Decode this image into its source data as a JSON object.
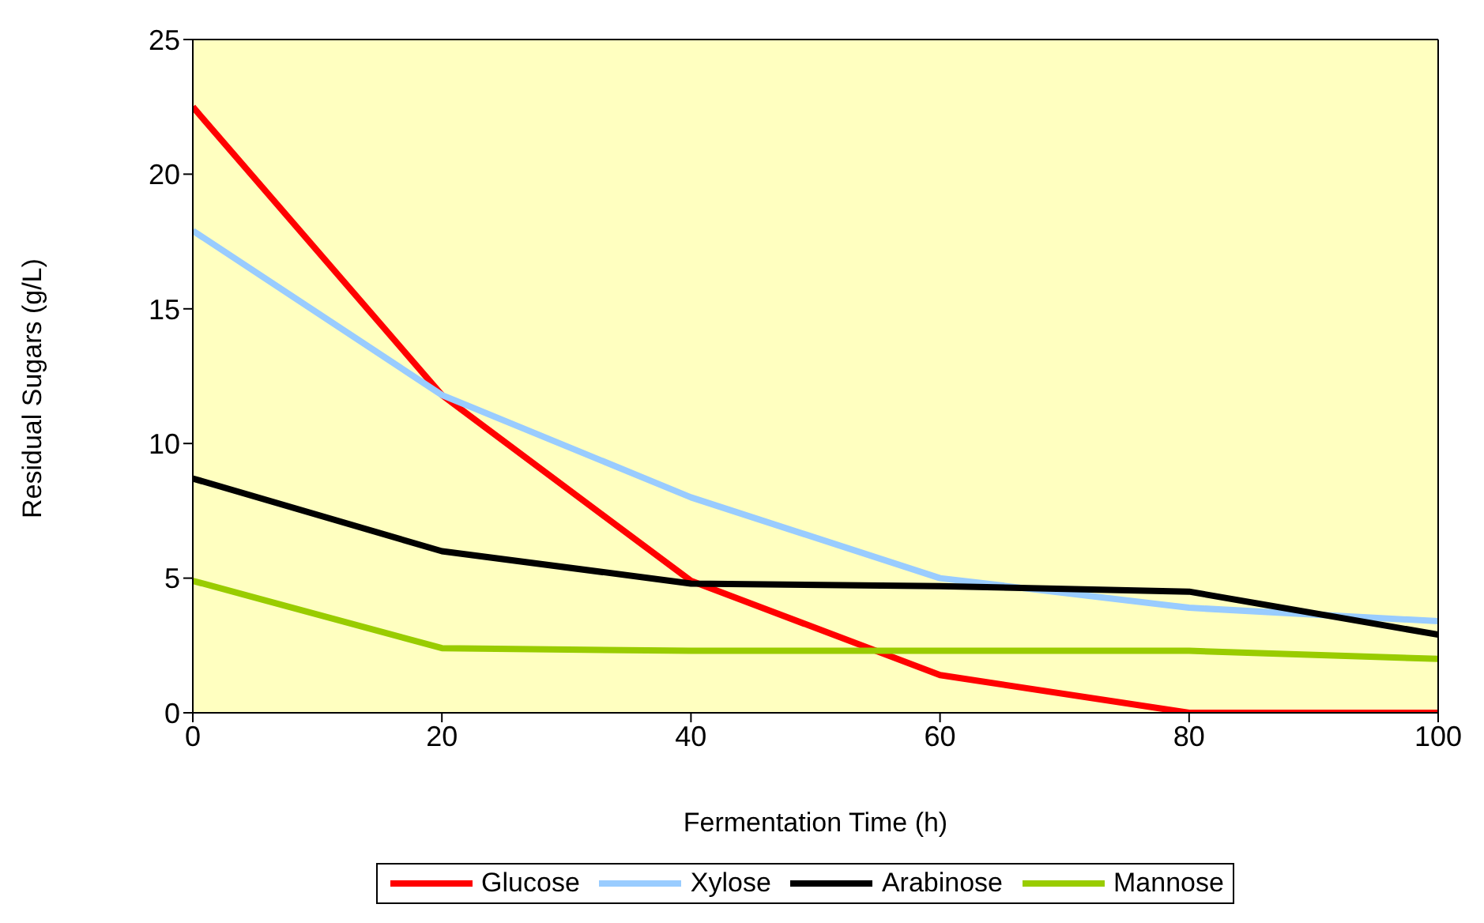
{
  "chart_data": {
    "type": "line",
    "xlabel": "Fermentation Time (h)",
    "ylabel": "Residual Sugars (g/L)",
    "x": [
      0,
      20,
      40,
      60,
      80,
      100
    ],
    "series": [
      {
        "name": "Glucose",
        "color": "#ff0000",
        "values": [
          22.5,
          11.8,
          4.9,
          1.4,
          0,
          0
        ]
      },
      {
        "name": "Xylose",
        "color": "#99ccff",
        "values": [
          17.9,
          11.8,
          8.0,
          5.0,
          3.9,
          3.4
        ]
      },
      {
        "name": "Arabinose",
        "color": "#000000",
        "values": [
          8.7,
          6.0,
          4.8,
          4.7,
          4.5,
          2.9
        ]
      },
      {
        "name": "Mannose",
        "color": "#99cc00",
        "values": [
          4.9,
          2.4,
          2.3,
          2.3,
          2.3,
          2.0
        ]
      }
    ],
    "xlim": [
      0,
      100
    ],
    "xticks": [
      0,
      20,
      40,
      60,
      80,
      100
    ],
    "ylim": [
      0,
      25
    ],
    "yticks": [
      0,
      5,
      10,
      15,
      20,
      25
    ],
    "grid": false,
    "legend": "bottom",
    "marker": "none",
    "line_style": "solid"
  }
}
